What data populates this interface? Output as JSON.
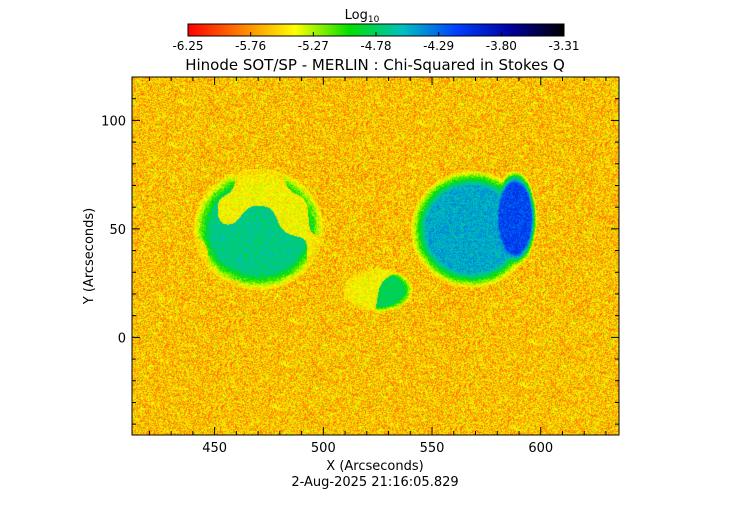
{
  "chart_data": {
    "type": "heatmap",
    "title": "Hinode SOT/SP - MERLIN : Chi-Squared in Stokes Q",
    "xlabel": "X (Arcseconds)",
    "ylabel": "Y (Arcseconds)",
    "xlim": [
      412,
      636
    ],
    "ylim": [
      -45,
      120
    ],
    "x_ticks": [
      450,
      500,
      550,
      600
    ],
    "y_ticks": [
      0,
      50,
      100
    ],
    "timestamp": "2-Aug-2025 21:16:05.829",
    "colorbar": {
      "label": "Log",
      "label_subscript": "10",
      "ticks": [
        "-6.25",
        "-5.76",
        "-5.27",
        "-4.78",
        "-4.29",
        "-3.80",
        "-3.31"
      ],
      "range": [
        -6.25,
        -3.31
      ],
      "colors": [
        "#ff0000",
        "#ff8000",
        "#ffff00",
        "#00e000",
        "#00c0c0",
        "#0040ff",
        "#0000a0",
        "#000000"
      ]
    },
    "background_level": -5.6,
    "regions": [
      {
        "name": "west-active-region",
        "cx": 470,
        "cy": 50,
        "rx": 30,
        "ry": 28,
        "level": -4.7
      },
      {
        "name": "central-patch",
        "cx": 525,
        "cy": 22,
        "rx": 16,
        "ry": 10,
        "level": -4.8
      },
      {
        "name": "east-sunspot",
        "cx": 568,
        "cy": 50,
        "rx": 28,
        "ry": 27,
        "level": -4.3
      },
      {
        "name": "east-sunspot-core",
        "cx": 588,
        "cy": 55,
        "rx": 10,
        "ry": 22,
        "level": -3.9
      }
    ]
  }
}
